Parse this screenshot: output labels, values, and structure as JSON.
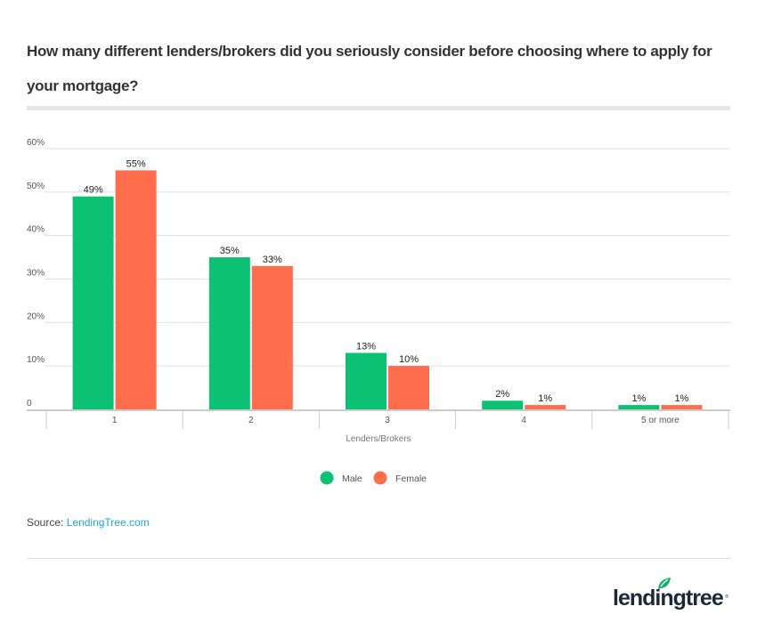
{
  "title": "How many different lenders/brokers did you seriously consider before choosing where to apply for your mortgage?",
  "source": {
    "label": "Source:",
    "link_text": "LendingTree.com"
  },
  "logo": {
    "text": "lendingtree",
    "reg": "®",
    "leaf_color": "#17b26a"
  },
  "colors": {
    "male": "#0cc174",
    "female": "#ff6d4d",
    "grid": "#e0e0e0",
    "axis": "#cccccc"
  },
  "chart_data": {
    "type": "bar",
    "title": "How many different lenders/brokers did you seriously consider before choosing where to apply for your mortgage?",
    "xlabel": "Lenders/Brokers",
    "ylabel": "",
    "categories": [
      "1",
      "2",
      "3",
      "4",
      "5 or more"
    ],
    "series": [
      {
        "name": "Male",
        "color": "#0cc174",
        "values": [
          49,
          35,
          13,
          2,
          1
        ],
        "labels": [
          "49%",
          "35%",
          "13%",
          "2%",
          "1%"
        ]
      },
      {
        "name": "Female",
        "color": "#ff6d4d",
        "values": [
          55,
          33,
          10,
          1,
          1
        ],
        "labels": [
          "55%",
          "33%",
          "10%",
          "1%",
          "1%"
        ]
      }
    ],
    "ylim": [
      0,
      60
    ],
    "yticks": [
      0,
      10,
      20,
      30,
      40,
      50,
      60
    ],
    "ytick_labels": [
      "0",
      "10%",
      "20%",
      "30%",
      "40%",
      "50%",
      "60%"
    ],
    "grid": true,
    "legend": {
      "position": "bottom-center",
      "entries": [
        "Male",
        "Female"
      ]
    }
  }
}
